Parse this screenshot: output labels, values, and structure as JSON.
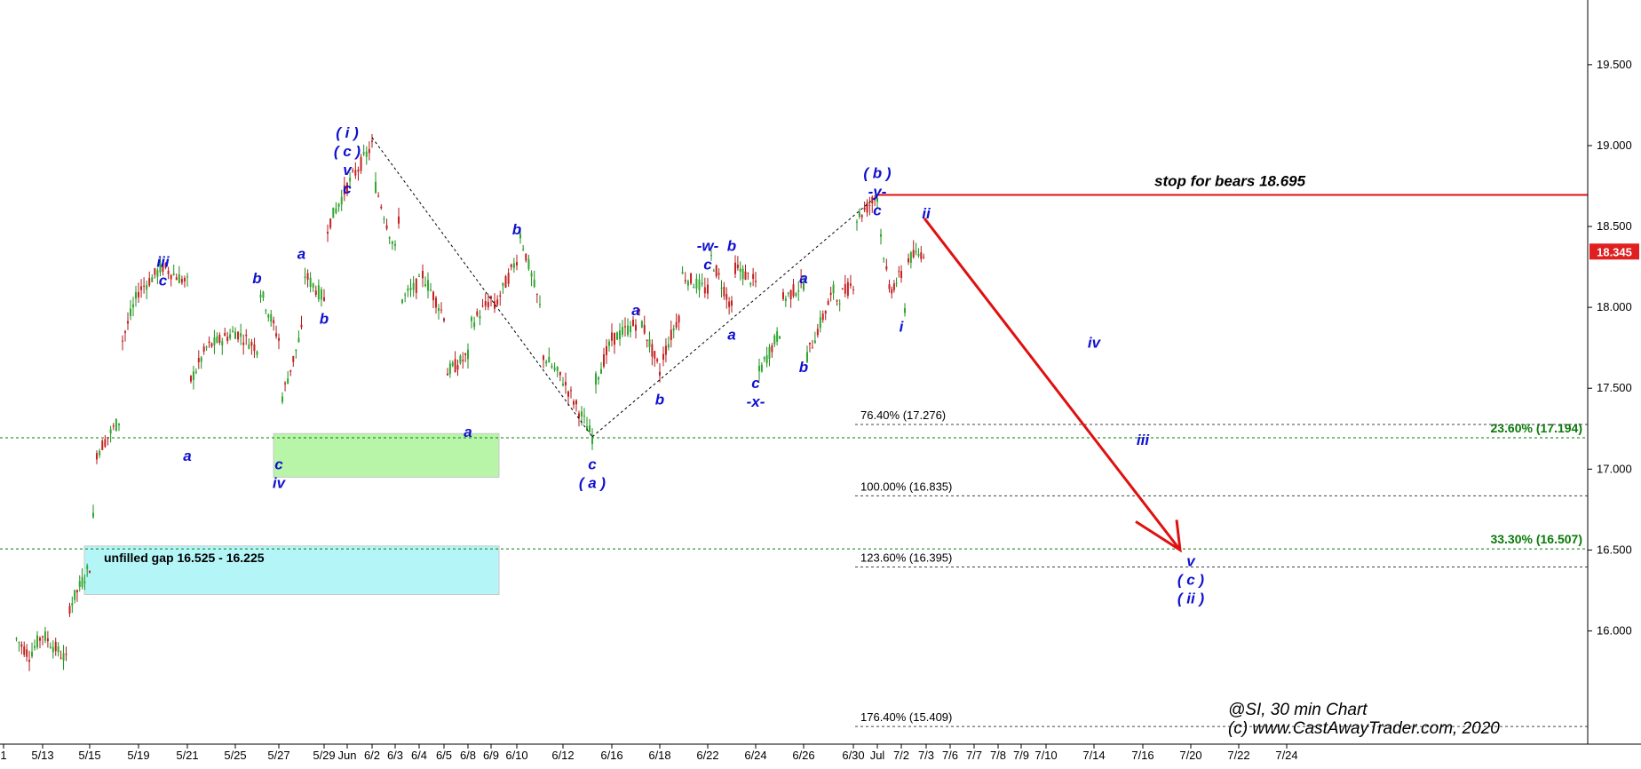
{
  "chart_data": {
    "type": "candlestick",
    "instrument": "@SI",
    "timeframe": "30 min",
    "ylim": [
      15.3,
      19.9
    ],
    "y_ticks": [
      {
        "value": 16.0,
        "label": "16.000"
      },
      {
        "value": 16.5,
        "label": "16.500"
      },
      {
        "value": 17.0,
        "label": "17.000"
      },
      {
        "value": 17.5,
        "label": "17.500"
      },
      {
        "value": 18.0,
        "label": "18.000"
      },
      {
        "value": 18.5,
        "label": "18.500"
      },
      {
        "value": 19.0,
        "label": "19.000"
      },
      {
        "value": 19.5,
        "label": "19.500"
      }
    ],
    "x_ticks": [
      "1",
      "5/13",
      "5/15",
      "5/19",
      "5/21",
      "5/25",
      "5/27",
      "5/29",
      "Jun",
      "6/2",
      "6/3",
      "6/4",
      "6/5",
      "6/8",
      "6/9",
      "6/10",
      "6/12",
      "6/16",
      "6/18",
      "6/22",
      "6/24",
      "6/26",
      "6/30",
      "Jul",
      "7/2",
      "7/3",
      "7/6",
      "7/7",
      "7/8",
      "7/9",
      "7/10",
      "7/14",
      "7/16",
      "7/20",
      "7/22",
      "7/24"
    ],
    "price_path": [
      {
        "date": "5/11",
        "price": 15.95
      },
      {
        "date": "5/12",
        "price": 15.85
      },
      {
        "date": "5/13",
        "price": 15.98
      },
      {
        "date": "5/14",
        "price": 15.82
      },
      {
        "date": "5/14",
        "price": 16.15
      },
      {
        "date": "5/15",
        "price": 16.4
      },
      {
        "date": "5/15",
        "price": 16.7
      },
      {
        "date": "5/15",
        "price": 17.1
      },
      {
        "date": "5/18",
        "price": 17.3
      },
      {
        "date": "5/18",
        "price": 17.8
      },
      {
        "date": "5/19",
        "price": 18.1
      },
      {
        "date": "5/20",
        "price": 18.25
      },
      {
        "date": "5/21",
        "price": 18.15
      },
      {
        "date": "5/21",
        "price": 17.55
      },
      {
        "date": "5/22",
        "price": 17.75
      },
      {
        "date": "5/25",
        "price": 17.85
      },
      {
        "date": "5/26",
        "price": 17.75
      },
      {
        "date": "5/26",
        "price": 18.1
      },
      {
        "date": "5/27",
        "price": 17.8
      },
      {
        "date": "5/27",
        "price": 17.45
      },
      {
        "date": "5/28",
        "price": 17.85
      },
      {
        "date": "5/28",
        "price": 18.2
      },
      {
        "date": "5/29",
        "price": 18.05
      },
      {
        "date": "5/29",
        "price": 18.5
      },
      {
        "date": "Jun",
        "price": 18.75
      },
      {
        "date": "6/2",
        "price": 19.0
      },
      {
        "date": "6/2",
        "price": 18.75
      },
      {
        "date": "6/3",
        "price": 18.35
      },
      {
        "date": "6/3",
        "price": 18.55
      },
      {
        "date": "6/3",
        "price": 18.05
      },
      {
        "date": "6/4",
        "price": 18.15
      },
      {
        "date": "6/4",
        "price": 18.2
      },
      {
        "date": "6/5",
        "price": 17.95
      },
      {
        "date": "6/5",
        "price": 17.6
      },
      {
        "date": "6/8",
        "price": 17.7
      },
      {
        "date": "6/8",
        "price": 17.9
      },
      {
        "date": "6/9",
        "price": 18.05
      },
      {
        "date": "6/9",
        "price": 18.0
      },
      {
        "date": "6/10",
        "price": 18.3
      },
      {
        "date": "6/10",
        "price": 18.45
      },
      {
        "date": "6/11",
        "price": 18.0
      },
      {
        "date": "6/11",
        "price": 17.7
      },
      {
        "date": "6/12",
        "price": 17.55
      },
      {
        "date": "6/15",
        "price": 17.2
      },
      {
        "date": "6/15",
        "price": 17.55
      },
      {
        "date": "6/16",
        "price": 17.8
      },
      {
        "date": "6/17",
        "price": 17.9
      },
      {
        "date": "6/17",
        "price": 17.95
      },
      {
        "date": "6/18",
        "price": 17.6
      },
      {
        "date": "6/18",
        "price": 17.7
      },
      {
        "date": "6/19",
        "price": 17.95
      },
      {
        "date": "6/19",
        "price": 18.2
      },
      {
        "date": "6/22",
        "price": 18.1
      },
      {
        "date": "6/22",
        "price": 18.3
      },
      {
        "date": "6/23",
        "price": 18.0
      },
      {
        "date": "6/23",
        "price": 18.25
      },
      {
        "date": "6/24",
        "price": 18.15
      },
      {
        "date": "6/24",
        "price": 17.6
      },
      {
        "date": "6/25",
        "price": 17.85
      },
      {
        "date": "6/25",
        "price": 18.05
      },
      {
        "date": "6/26",
        "price": 18.15
      },
      {
        "date": "6/26",
        "price": 17.7
      },
      {
        "date": "6/29",
        "price": 18.1
      },
      {
        "date": "6/29",
        "price": 18.05
      },
      {
        "date": "6/30",
        "price": 18.15
      },
      {
        "date": "6/30",
        "price": 18.55
      },
      {
        "date": "Jul",
        "price": 18.69
      },
      {
        "date": "Jul",
        "price": 18.45
      },
      {
        "date": "7/1",
        "price": 18.1
      },
      {
        "date": "7/2",
        "price": 18.2
      },
      {
        "date": "7/2",
        "price": 18.0
      },
      {
        "date": "7/2",
        "price": 18.3
      },
      {
        "date": "7/3",
        "price": 18.35
      }
    ],
    "last_price": {
      "value": 18.345,
      "label": "18.345"
    },
    "horizontal_lines": [
      {
        "value": 18.695,
        "color": "#e01010",
        "label": "stop for bears 18.695"
      },
      {
        "value": 17.194,
        "color": "#0a7a0a",
        "label": "23.60% (17.194)"
      },
      {
        "value": 16.507,
        "color": "#0a7a0a",
        "label": "33.30% (16.507)"
      }
    ],
    "fib_levels": [
      {
        "value": 17.276,
        "label": "76.40% (17.276)"
      },
      {
        "value": 16.835,
        "label": "100.00% (16.835)"
      },
      {
        "value": 16.395,
        "label": "123.60% (16.395)"
      },
      {
        "value": 15.409,
        "label": "176.40% (15.409)"
      }
    ],
    "zones": [
      {
        "label": "",
        "color": "#b8f5a8",
        "from_date": "5/27",
        "to_date": "6/10",
        "y_range": [
          16.95,
          17.22
        ]
      },
      {
        "label": "unfilled gap 16.525 - 16.225",
        "color": "#b4f6f8",
        "from_date": "5/15",
        "to_date": "6/10",
        "y_range": [
          16.225,
          16.525
        ]
      }
    ],
    "wave_labels": [
      {
        "date": "5/20",
        "price": 18.25,
        "lines": [
          "iii",
          "c"
        ]
      },
      {
        "date": "5/21",
        "price": 17.05,
        "lines": [
          "a"
        ]
      },
      {
        "date": "5/26",
        "price": 18.15,
        "lines": [
          "b"
        ]
      },
      {
        "date": "5/27",
        "price": 17.0,
        "lines": [
          "c",
          "iv"
        ]
      },
      {
        "date": "5/28",
        "price": 18.3,
        "lines": [
          "a"
        ]
      },
      {
        "date": "5/29",
        "price": 17.9,
        "lines": [
          "b"
        ]
      },
      {
        "date": "Jun",
        "price": 19.05,
        "lines": [
          "( i )",
          "( c )",
          "v",
          "c"
        ]
      },
      {
        "date": "6/8",
        "price": 17.2,
        "lines": [
          "a"
        ]
      },
      {
        "date": "6/10",
        "price": 18.45,
        "lines": [
          "b"
        ]
      },
      {
        "date": "6/15",
        "price": 17.0,
        "lines": [
          "c",
          "( a )"
        ]
      },
      {
        "date": "6/17",
        "price": 17.95,
        "lines": [
          "a"
        ]
      },
      {
        "date": "6/18",
        "price": 17.4,
        "lines": [
          "b"
        ]
      },
      {
        "date": "6/22",
        "price": 18.35,
        "lines": [
          "-w-",
          "c"
        ]
      },
      {
        "date": "6/23",
        "price": 18.35,
        "lines": [
          "b"
        ]
      },
      {
        "date": "6/23",
        "price": 17.8,
        "lines": [
          "a"
        ]
      },
      {
        "date": "6/24",
        "price": 17.5,
        "lines": [
          "c",
          "-x-"
        ]
      },
      {
        "date": "6/26",
        "price": 18.15,
        "lines": [
          "a"
        ]
      },
      {
        "date": "6/26",
        "price": 17.6,
        "lines": [
          "b"
        ]
      },
      {
        "date": "Jul",
        "price": 18.8,
        "lines": [
          "( b )",
          "-y-",
          "c"
        ]
      },
      {
        "date": "7/3",
        "price": 18.55,
        "lines": [
          "ii"
        ]
      },
      {
        "date": "7/2",
        "price": 17.85,
        "lines": [
          "i"
        ]
      },
      {
        "date": "7/16",
        "price": 17.15,
        "lines": [
          "iii"
        ]
      },
      {
        "date": "7/14",
        "price": 17.75,
        "lines": [
          "iv"
        ]
      },
      {
        "date": "7/20",
        "price": 16.4,
        "lines": [
          "v",
          "( c )",
          "( ii )"
        ]
      }
    ],
    "projection": {
      "from": {
        "date": "7/3",
        "price": 18.55
      },
      "to": {
        "date": "7/20",
        "price": 16.5
      },
      "color": "#e01010"
    },
    "dotted_lines": [
      {
        "from": {
          "date": "6/2",
          "price": 19.05
        },
        "to": {
          "date": "6/15",
          "price": 17.2
        }
      },
      {
        "from": {
          "date": "6/15",
          "price": 17.2
        },
        "to": {
          "date": "Jul",
          "price": 18.69
        }
      }
    ],
    "annotation": "@SI, 30 min Chart",
    "copyright": "(c) www.CastAwayTrader.com, 2020"
  }
}
